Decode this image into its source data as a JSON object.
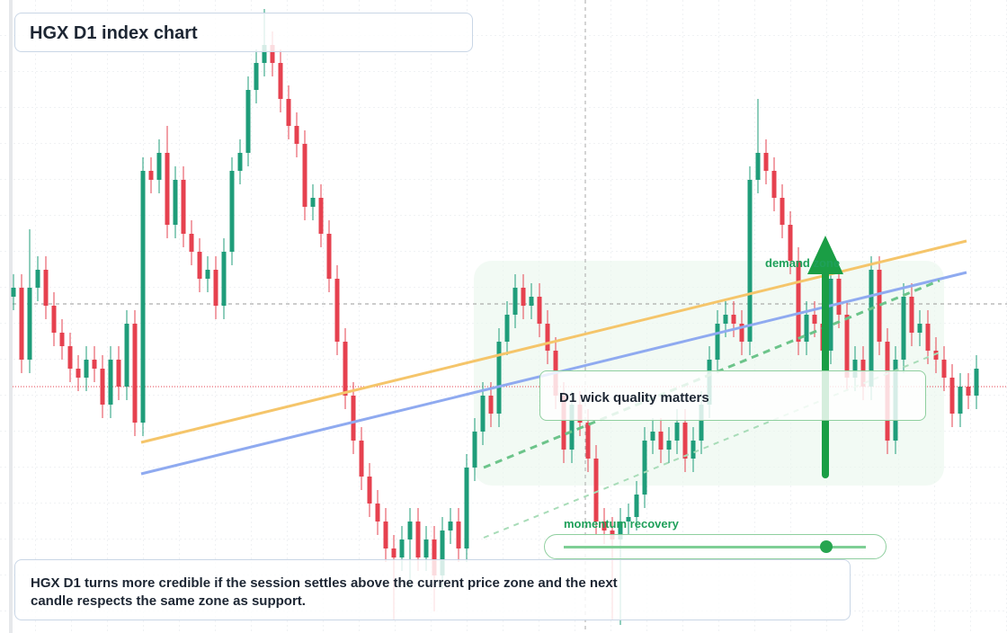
{
  "chart_data": {
    "type": "candlestick",
    "title": "HGX D1 index chart",
    "annotations": [
      "D1 wick quality matters",
      "demand zone",
      "momentum recovery"
    ],
    "caption": "HGX D1 turns more credible if the session settles above the current price zone and the next candle respects the same zone as support.",
    "up_color": "#1f9d7a",
    "down_color": "#e6414f",
    "ylim": [
      20,
      90.4
    ],
    "open": [
      57.4,
      58.4,
      50.4,
      58.4,
      60.4,
      56.4,
      53.4,
      51.9,
      49.4,
      48.4,
      50.4,
      49.4,
      45.4,
      50.4,
      47.4,
      54.4,
      43.4,
      71.4,
      70.4,
      73.4,
      65.4,
      70.4,
      64.4,
      62.4,
      59.4,
      60.4,
      56.4,
      62.4,
      71.4,
      73.4,
      80.4,
      83.4,
      85.4,
      83.4,
      79.4,
      76.4,
      74.4,
      67.4,
      68.4,
      64.4,
      59.4,
      52.4,
      46.4,
      41.4,
      37.4,
      34.4,
      32.4,
      29.4,
      28.4,
      30.4,
      32.4,
      28.4,
      30.4,
      26.4,
      31.4,
      32.4,
      29.4,
      38.4,
      42.4,
      46.4,
      44.4,
      52.4,
      55.4,
      58.4,
      56.4,
      57.4,
      54.4,
      51.4,
      46.4,
      40.4,
      45.4,
      43.4,
      39.4,
      32.4,
      31.4,
      30.4,
      32.4,
      32.9,
      35.4,
      41.4,
      42.4,
      40.4,
      41.4,
      43.4,
      39.4,
      41.4,
      45.4,
      50.4,
      54.4,
      55.4,
      54.4,
      52.4,
      70.4,
      73.4,
      71.4,
      68.4,
      65.4,
      61.4,
      52.4,
      55.4,
      54.4,
      51.4,
      59.4,
      55.4,
      48.4,
      50.4,
      47.4,
      60.4,
      52.4,
      41.4,
      50.4,
      57.4,
      53.4,
      54.4,
      51.4,
      50.4,
      48.4,
      44.4,
      47.4,
      46.4
    ],
    "high": [
      59.9,
      59.9,
      64.9,
      61.9,
      61.9,
      57.9,
      54.9,
      53.4,
      50.9,
      51.9,
      51.9,
      50.9,
      51.9,
      51.9,
      55.9,
      55.9,
      72.9,
      72.9,
      74.9,
      76.4,
      71.9,
      71.9,
      65.9,
      63.9,
      61.9,
      61.9,
      63.9,
      72.9,
      74.9,
      81.9,
      84.9,
      89.4,
      86.9,
      84.9,
      80.9,
      77.9,
      75.9,
      69.9,
      69.9,
      65.9,
      60.9,
      53.9,
      47.9,
      42.9,
      38.9,
      35.9,
      33.9,
      30.9,
      31.9,
      33.9,
      33.9,
      31.9,
      31.9,
      32.9,
      33.9,
      33.9,
      39.9,
      43.9,
      47.9,
      47.9,
      53.9,
      56.9,
      59.9,
      59.9,
      58.9,
      58.9,
      55.9,
      52.9,
      47.9,
      46.9,
      46.9,
      44.9,
      40.9,
      33.9,
      32.9,
      33.9,
      34.4,
      36.9,
      42.9,
      43.9,
      43.9,
      42.9,
      44.9,
      44.9,
      42.9,
      46.9,
      51.9,
      55.9,
      56.9,
      56.9,
      55.9,
      71.9,
      79.4,
      74.9,
      72.9,
      69.9,
      66.9,
      62.9,
      56.9,
      56.9,
      55.9,
      60.9,
      60.9,
      56.9,
      51.9,
      51.9,
      61.9,
      61.9,
      53.9,
      51.9,
      58.9,
      58.9,
      55.9,
      55.9,
      52.9,
      51.9,
      49.9,
      48.9,
      48.9,
      50.9
    ],
    "low": [
      55.9,
      48.9,
      48.9,
      56.9,
      54.9,
      51.9,
      50.4,
      47.9,
      46.9,
      46.9,
      47.9,
      43.9,
      43.9,
      45.9,
      45.9,
      41.9,
      41.9,
      68.9,
      68.9,
      63.9,
      63.9,
      62.9,
      60.9,
      57.9,
      57.9,
      54.9,
      54.9,
      60.9,
      69.9,
      71.9,
      78.9,
      81.9,
      81.9,
      77.9,
      74.9,
      72.9,
      65.9,
      65.9,
      62.9,
      57.9,
      50.9,
      44.9,
      39.9,
      35.9,
      32.9,
      30.9,
      27.9,
      21.4,
      26.9,
      24.9,
      26.9,
      26.9,
      22.4,
      24.9,
      29.9,
      27.9,
      27.9,
      36.9,
      40.9,
      42.9,
      42.9,
      50.9,
      53.9,
      54.9,
      54.9,
      52.9,
      49.9,
      44.9,
      38.9,
      38.9,
      41.9,
      37.9,
      30.9,
      29.9,
      21.4,
      20.9,
      30.9,
      31.4,
      33.9,
      39.9,
      38.9,
      38.9,
      39.9,
      37.9,
      37.9,
      39.9,
      43.9,
      48.9,
      52.9,
      52.9,
      50.9,
      50.9,
      68.9,
      69.9,
      66.9,
      63.9,
      59.9,
      50.9,
      50.9,
      52.9,
      49.9,
      49.9,
      53.9,
      46.9,
      46.9,
      45.9,
      45.9,
      50.9,
      39.9,
      39.9,
      48.9,
      51.9,
      51.9,
      49.9,
      48.9,
      46.9,
      42.9,
      42.9,
      44.9,
      44.9
    ],
    "close": [
      58.4,
      50.4,
      58.4,
      60.4,
      56.4,
      53.4,
      51.9,
      49.4,
      48.4,
      50.4,
      49.4,
      45.4,
      50.4,
      47.4,
      54.4,
      43.4,
      71.4,
      70.4,
      73.4,
      65.4,
      70.4,
      64.4,
      62.4,
      59.4,
      60.4,
      56.4,
      62.4,
      71.4,
      73.4,
      80.4,
      83.4,
      85.4,
      83.4,
      79.4,
      76.4,
      74.4,
      67.4,
      68.4,
      64.4,
      59.4,
      52.4,
      46.4,
      41.4,
      37.4,
      34.4,
      32.4,
      29.4,
      28.4,
      30.4,
      32.4,
      28.4,
      30.4,
      26.4,
      31.4,
      32.4,
      29.4,
      38.4,
      42.4,
      46.4,
      44.4,
      52.4,
      55.4,
      58.4,
      56.4,
      57.4,
      54.4,
      51.4,
      46.4,
      40.4,
      45.4,
      43.4,
      39.4,
      32.4,
      31.4,
      30.4,
      32.4,
      32.9,
      35.4,
      41.4,
      42.4,
      40.4,
      41.4,
      43.4,
      39.4,
      41.4,
      45.4,
      50.4,
      54.4,
      55.4,
      54.4,
      52.4,
      70.4,
      73.4,
      71.4,
      68.4,
      65.4,
      61.4,
      52.4,
      55.4,
      54.4,
      51.4,
      59.4,
      55.4,
      48.4,
      50.4,
      47.4,
      60.4,
      52.4,
      41.4,
      50.4,
      57.4,
      53.4,
      54.4,
      51.4,
      50.4,
      48.4,
      44.4,
      47.4,
      46.4,
      49.4
    ]
  }
}
